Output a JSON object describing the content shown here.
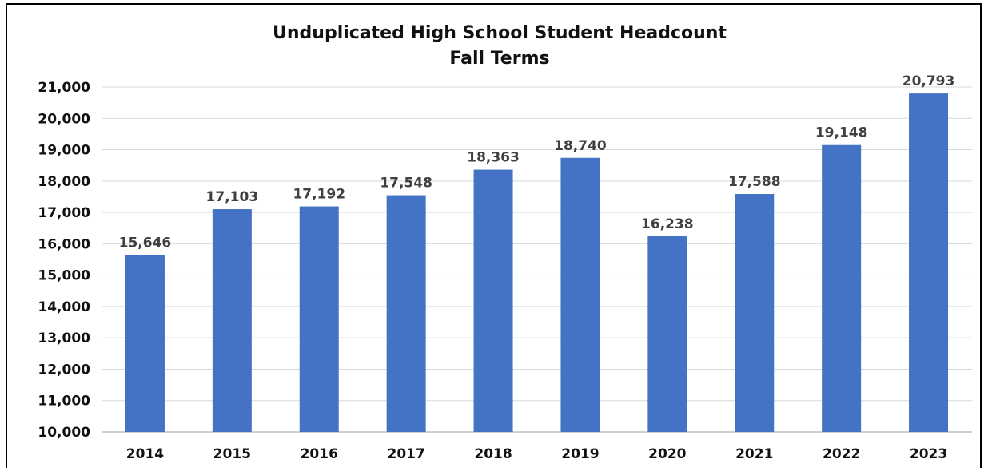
{
  "chart_data": {
    "type": "bar",
    "title": "Unduplicated High School Student Headcount",
    "subtitle": "Fall Terms",
    "categories": [
      "2014",
      "2015",
      "2016",
      "2017",
      "2018",
      "2019",
      "2020",
      "2021",
      "2022",
      "2023"
    ],
    "values": [
      15646,
      17103,
      17192,
      17548,
      18363,
      18740,
      16238,
      17588,
      19148,
      20793
    ],
    "data_labels": [
      "15,646",
      "17,103",
      "17,192",
      "17,548",
      "18,363",
      "18,740",
      "16,238",
      "17,588",
      "19,148",
      "20,793"
    ],
    "xlabel": "",
    "ylabel": "",
    "ylim": [
      10000,
      21000
    ],
    "y_ticks": [
      10000,
      11000,
      12000,
      13000,
      14000,
      15000,
      16000,
      17000,
      18000,
      19000,
      20000,
      21000
    ],
    "y_tick_labels": [
      "10,000",
      "11,000",
      "12,000",
      "13,000",
      "14,000",
      "15,000",
      "16,000",
      "17,000",
      "18,000",
      "19,000",
      "20,000",
      "21,000"
    ],
    "grid": true,
    "legend": "none",
    "colors": {
      "bar": "#4472C4",
      "grid": "#D9D9D9",
      "axis": "#BFBFBF",
      "label": "#404040"
    }
  }
}
